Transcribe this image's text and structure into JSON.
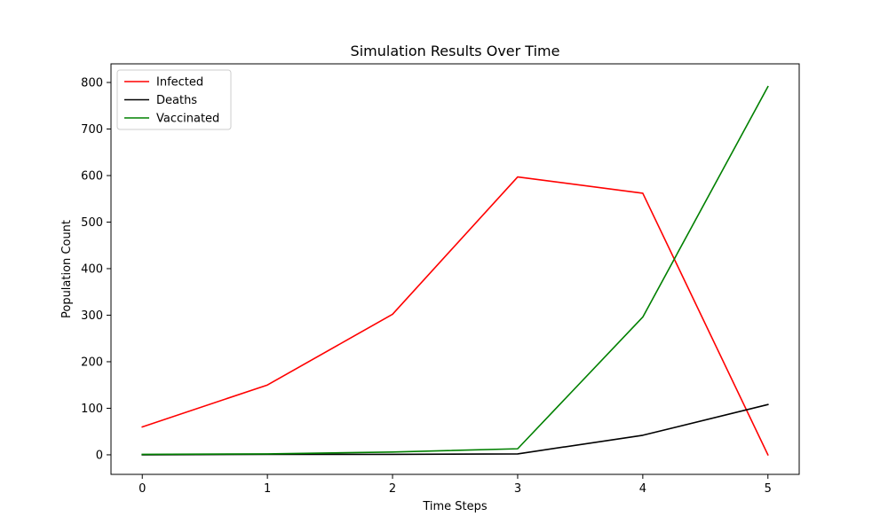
{
  "chart_data": {
    "type": "line",
    "title": "Simulation Results Over Time",
    "xlabel": "Time Steps",
    "ylabel": "Population Count",
    "x": [
      0,
      1,
      2,
      3,
      4,
      5
    ],
    "xlim": [
      -0.25,
      5.25
    ],
    "ylim": [
      -42,
      840
    ],
    "xticks": [
      0,
      1,
      2,
      3,
      4,
      5
    ],
    "yticks": [
      0,
      100,
      200,
      300,
      400,
      500,
      600,
      700,
      800
    ],
    "grid": false,
    "legend_position": "top-left",
    "series": [
      {
        "name": "Infected",
        "color": "#ff0000",
        "values": [
          60,
          150,
          302,
          597,
          562,
          0
        ]
      },
      {
        "name": "Deaths",
        "color": "#000000",
        "values": [
          0,
          1,
          1,
          2,
          42,
          108
        ]
      },
      {
        "name": "Vaccinated",
        "color": "#008000",
        "values": [
          1,
          2,
          6,
          13,
          296,
          791
        ]
      }
    ]
  }
}
